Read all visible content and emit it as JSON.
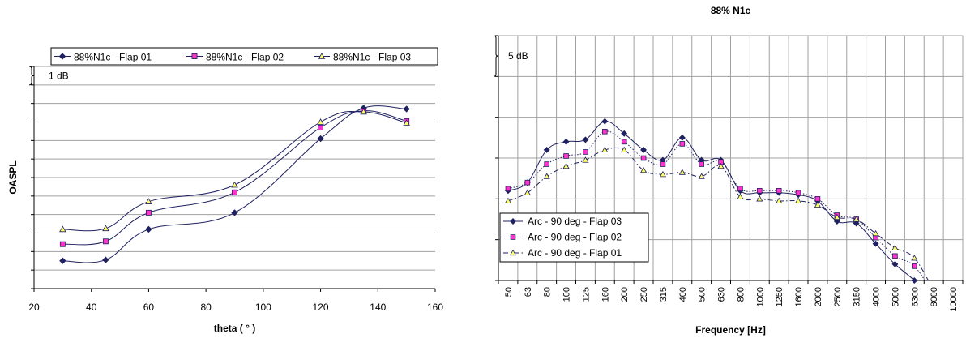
{
  "chart_data": [
    {
      "type": "line",
      "title": "",
      "xlabel": "theta ( ° )",
      "ylabel": "OASPL",
      "xlim": [
        20,
        160
      ],
      "x_ticks": [
        20,
        40,
        60,
        80,
        100,
        120,
        140,
        160
      ],
      "ylim": [
        0,
        12
      ],
      "y_tick_step": 1,
      "y_tick_labels": "none",
      "grid": "horizontal",
      "legend": "top",
      "scale_annotation": "1 dB",
      "x": [
        30,
        45,
        60,
        90,
        120,
        135,
        150
      ],
      "series": [
        {
          "name": "88%N1c - Flap 01",
          "marker": "diamond",
          "color": "#1f2160",
          "fill": "#1f2160",
          "values": [
            1.5,
            1.55,
            3.2,
            4.1,
            8.1,
            9.75,
            9.7
          ]
        },
        {
          "name": "88%N1c - Flap 02",
          "marker": "square",
          "color": "#1f2160",
          "fill": "#ff33cc",
          "values": [
            2.4,
            2.55,
            4.1,
            5.2,
            8.7,
            9.6,
            9.05
          ]
        },
        {
          "name": "88%N1c - Flap 03",
          "marker": "triangle",
          "color": "#1f2160",
          "fill": "#ffff66",
          "values": [
            3.2,
            3.25,
            4.7,
            5.6,
            9.0,
            9.55,
            8.95
          ]
        }
      ]
    },
    {
      "type": "line",
      "title": "88% N1c",
      "xlabel": "Frequency [Hz]",
      "ylabel": "",
      "categories": [
        "50",
        "63",
        "80",
        "100",
        "125",
        "160",
        "200",
        "250",
        "315",
        "400",
        "500",
        "630",
        "800",
        "1000",
        "1250",
        "1600",
        "2000",
        "2500",
        "3150",
        "4000",
        "5000",
        "6300",
        "8000",
        "10000"
      ],
      "ylim": [
        0,
        6
      ],
      "y_tick_step": 1,
      "y_tick_labels": "none",
      "grid": "both",
      "legend": "bottom-left",
      "scale_annotation": "5 dB",
      "series": [
        {
          "name": "Arc - 90 deg - Flap 03",
          "marker": "diamond",
          "line": "solid",
          "color": "#1f2160",
          "fill": "#1f2160",
          "values": [
            2.2,
            2.4,
            3.2,
            3.4,
            3.45,
            3.9,
            3.6,
            3.2,
            2.95,
            3.5,
            2.95,
            2.95,
            2.2,
            2.15,
            2.15,
            2.1,
            1.95,
            1.45,
            1.4,
            0.9,
            0.4,
            0.0,
            null,
            null
          ]
        },
        {
          "name": "Arc - 90 deg - Flap 02",
          "marker": "square",
          "line": "dotted",
          "color": "#1f2160",
          "fill": "#ff33cc",
          "values": [
            2.25,
            2.4,
            2.85,
            3.05,
            3.15,
            3.65,
            3.4,
            3.0,
            2.85,
            3.35,
            2.85,
            2.9,
            2.25,
            2.2,
            2.2,
            2.15,
            2.0,
            1.6,
            1.5,
            1.05,
            0.6,
            0.35,
            null,
            null
          ]
        },
        {
          "name": "Arc - 90 deg - Flap 01",
          "marker": "triangle",
          "line": "dashdot",
          "color": "#1f2160",
          "fill": "#ffff66",
          "values": [
            1.95,
            2.15,
            2.55,
            2.8,
            2.95,
            3.2,
            3.2,
            2.7,
            2.6,
            2.65,
            2.55,
            2.8,
            2.05,
            2.0,
            1.95,
            1.95,
            1.85,
            1.55,
            1.5,
            1.15,
            0.8,
            0.55,
            null,
            null
          ]
        }
      ]
    }
  ]
}
